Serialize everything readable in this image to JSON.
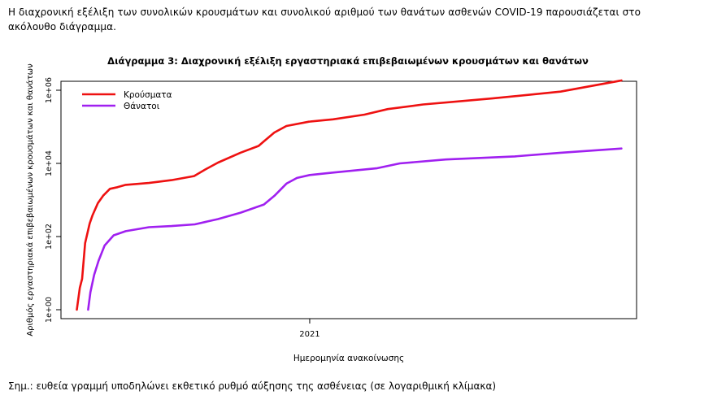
{
  "intro_text": "Η διαχρονική εξέλιξη των συνολικών κρουσμάτων και συνολικού αριθμού των θανάτων ασθενών COVID-19 παρουσιάζεται στο ακόλουθο διάγραμμα.",
  "footnote": "Σημ.: ευθεία γραμμή υποδηλώνει εκθετικό ρυθμό αύξησης της ασθένειας (σε λογαριθμική κλίμακα)",
  "colors": {
    "cases": "#ee1111",
    "deaths": "#a020f0"
  },
  "chart_data": {
    "type": "line",
    "title": "Διάγραμμα 3: Διαχρονική εξέλιξη εργαστηριακά επιβεβαιωμένων κρουσμάτων και θανάτων",
    "xlabel": "Ημερομηνία ανακοίνωσης",
    "ylabel": "Αριθμός εργαστηριακά επιβεβαιωμένων κρουσμάτων και θανάτων",
    "yscale": "log",
    "ylim": [
      1,
      1000000
    ],
    "xlim": [
      "2020-02-20",
      "2022-02-25"
    ],
    "y_ticks": [
      "1e+00",
      "1e+02",
      "1e+04",
      "1e+06"
    ],
    "x_ticks": [
      {
        "label": "2021",
        "date": "2021-01-01"
      }
    ],
    "legend": {
      "position": "top-left",
      "entries": [
        "Κρούσματα",
        "Θάνατοι"
      ]
    },
    "series": [
      {
        "name": "Κρούσματα",
        "color": "#ee1111",
        "points": [
          [
            "2020-02-26",
            1
          ],
          [
            "2020-03-01",
            4
          ],
          [
            "2020-03-04",
            7
          ],
          [
            "2020-03-08",
            66
          ],
          [
            "2020-03-14",
            228
          ],
          [
            "2020-03-18",
            387
          ],
          [
            "2020-03-25",
            821
          ],
          [
            "2020-04-01",
            1314
          ],
          [
            "2020-04-10",
            2011
          ],
          [
            "2020-04-20",
            2235
          ],
          [
            "2020-05-01",
            2591
          ],
          [
            "2020-06-01",
            2917
          ],
          [
            "2020-07-01",
            3486
          ],
          [
            "2020-07-31",
            4500
          ],
          [
            "2020-08-15",
            6800
          ],
          [
            "2020-09-01",
            10500
          ],
          [
            "2020-10-01",
            19600
          ],
          [
            "2020-10-25",
            30000
          ],
          [
            "2020-11-01",
            40000
          ],
          [
            "2020-11-15",
            70000
          ],
          [
            "2020-12-01",
            105000
          ],
          [
            "2020-12-31",
            138000
          ],
          [
            "2021-02-01",
            160000
          ],
          [
            "2021-03-15",
            215000
          ],
          [
            "2021-04-15",
            305000
          ],
          [
            "2021-06-01",
            408000
          ],
          [
            "2021-09-01",
            595000
          ],
          [
            "2021-12-01",
            915000
          ],
          [
            "2022-02-20",
            1850000
          ]
        ]
      },
      {
        "name": "Θάνατοι",
        "color": "#a020f0",
        "points": [
          [
            "2020-03-12",
            1
          ],
          [
            "2020-03-15",
            3
          ],
          [
            "2020-03-20",
            9
          ],
          [
            "2020-03-26",
            22
          ],
          [
            "2020-04-03",
            57
          ],
          [
            "2020-04-15",
            108
          ],
          [
            "2020-05-01",
            140
          ],
          [
            "2020-06-01",
            180
          ],
          [
            "2020-07-01",
            193
          ],
          [
            "2020-08-01",
            215
          ],
          [
            "2020-09-01",
            300
          ],
          [
            "2020-10-01",
            450
          ],
          [
            "2020-11-01",
            750
          ],
          [
            "2020-11-15",
            1300
          ],
          [
            "2020-12-01",
            2800
          ],
          [
            "2020-12-15",
            4000
          ],
          [
            "2021-01-01",
            4800
          ],
          [
            "2021-02-01",
            5600
          ],
          [
            "2021-04-01",
            7400
          ],
          [
            "2021-05-01",
            10000
          ],
          [
            "2021-07-01",
            12800
          ],
          [
            "2021-10-01",
            15500
          ],
          [
            "2021-12-01",
            19500
          ],
          [
            "2022-02-20",
            25500
          ]
        ]
      }
    ]
  }
}
